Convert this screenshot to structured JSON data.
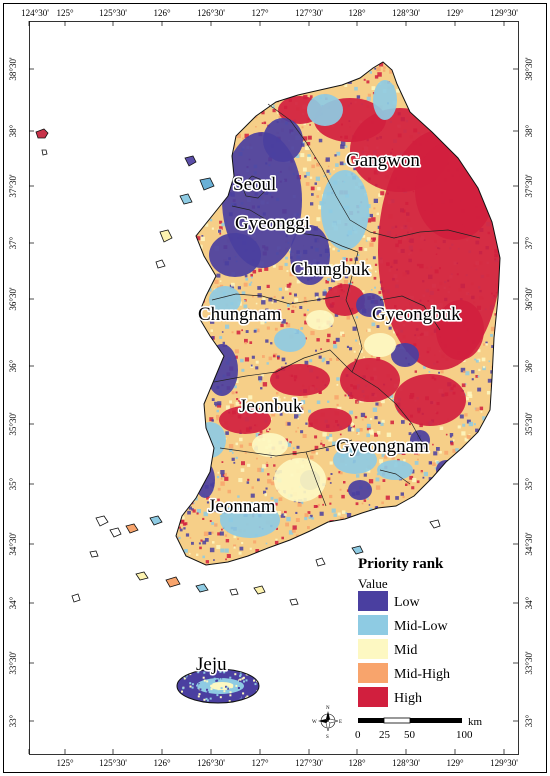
{
  "lon_labels": [
    "124°30'",
    "125°",
    "125°30'",
    "126°",
    "126°30'",
    "127°",
    "127°30'",
    "128°",
    "128°30'",
    "129°",
    "129°30'"
  ],
  "lat_labels": [
    "38°30'",
    "38°",
    "37°30'",
    "37°",
    "36°30'",
    "36°",
    "35°30'",
    "35°",
    "34°30'",
    "34°",
    "33°30'",
    "33°"
  ],
  "regions": {
    "gangwon": "Gangwon",
    "seoul": "Seoul",
    "gyeonggi": "Gyeonggi",
    "chungbuk": "Chungbuk",
    "chungnam": "Chungnam",
    "gyeongbuk": "Gyeongbuk",
    "jeonbuk": "Jeonbuk",
    "gyeongnam": "Gyeongnam",
    "jeonnam": "Jeonnam",
    "jeju": "Jeju"
  },
  "legend": {
    "title": "Priority rank",
    "subtitle": "Value",
    "items": [
      {
        "label": "Low",
        "color": "#4a3fa0"
      },
      {
        "label": "Mid-Low",
        "color": "#8ecbe3"
      },
      {
        "label": "Mid",
        "color": "#fdf8c2"
      },
      {
        "label": "Mid-High",
        "color": "#f8a46c"
      },
      {
        "label": "High",
        "color": "#d11f3e"
      }
    ]
  },
  "scale_bar": {
    "unit": "km",
    "ticks": [
      "0",
      "25",
      "50",
      "100"
    ]
  },
  "compass": {
    "n": "N",
    "e": "E",
    "s": "S",
    "w": "W"
  }
}
